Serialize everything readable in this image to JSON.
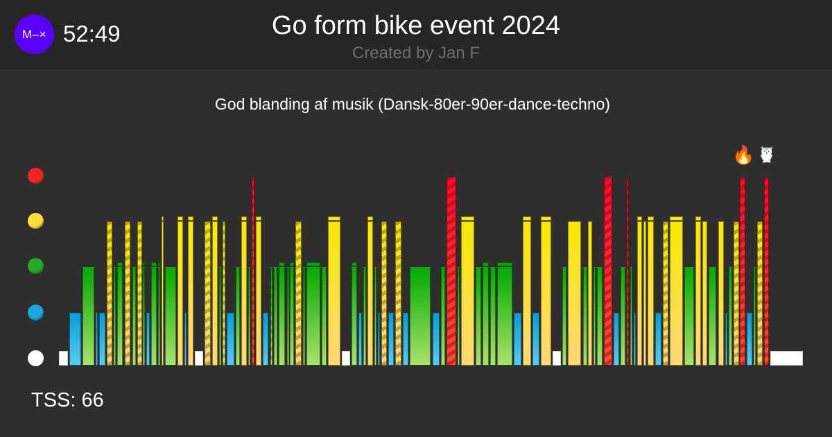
{
  "header": {
    "logo_text": "M–×",
    "timer": "52:49",
    "title": "Go form bike event 2024",
    "subtitle": "Created by Jan F"
  },
  "description": "God blanding af musik (Dansk-80er-90er-dance-techno)",
  "tss": "TSS: 66",
  "zone_colors": {
    "1": {
      "top": "#ffffff",
      "bottom": "#ffffff"
    },
    "2": {
      "top": "#069fd6",
      "bottom": "#58cbf2"
    },
    "3": {
      "top": "#00aa00",
      "bottom": "#a9e26c"
    },
    "4": {
      "top": "#f9e900",
      "bottom": "#ffd878"
    },
    "5": {
      "top": "#ff0a2a",
      "bottom": "#ff4c30"
    }
  },
  "zone_dots": [
    "#ff2020",
    "#ffe03a",
    "#22aa22",
    "#1aa8e0",
    "#ffffff"
  ],
  "chart_data": {
    "type": "bar",
    "description": "Workout interval profile by intensity zone (1-5); segment = [zone, seconds, style] where style s=striped, c=capped",
    "segments": [
      [
        1,
        45,
        ""
      ],
      [
        2,
        57,
        ""
      ],
      [
        3,
        57,
        ""
      ],
      [
        2,
        15,
        ""
      ],
      [
        2,
        33,
        ""
      ],
      [
        4,
        30,
        "s"
      ],
      [
        3,
        15,
        ""
      ],
      [
        3,
        33,
        "c"
      ],
      [
        4,
        33,
        "s"
      ],
      [
        3,
        21,
        ""
      ],
      [
        4,
        27,
        "s"
      ],
      [
        3,
        15,
        "c"
      ],
      [
        2,
        21,
        ""
      ],
      [
        3,
        30,
        "c"
      ],
      [
        3,
        15,
        "c"
      ],
      [
        4,
        15,
        "c"
      ],
      [
        3,
        54,
        ""
      ],
      [
        4,
        30,
        "c"
      ],
      [
        2,
        15,
        ""
      ],
      [
        4,
        30,
        "c"
      ],
      [
        1,
        42,
        ""
      ],
      [
        4,
        33,
        "s"
      ],
      [
        4,
        30,
        "c"
      ],
      [
        3,
        15,
        ""
      ],
      [
        4,
        18,
        "s"
      ],
      [
        2,
        39,
        ""
      ],
      [
        3,
        24,
        ""
      ],
      [
        4,
        30,
        "c"
      ],
      [
        3,
        15,
        ""
      ],
      [
        5,
        18,
        "s"
      ],
      [
        4,
        30,
        "c"
      ],
      [
        2,
        33,
        ""
      ],
      [
        3,
        15,
        "s"
      ],
      [
        3,
        21,
        ""
      ],
      [
        3,
        36,
        "c"
      ],
      [
        3,
        15,
        ""
      ],
      [
        3,
        24,
        "c"
      ],
      [
        4,
        33,
        "s"
      ],
      [
        3,
        15,
        ""
      ],
      [
        3,
        66,
        "c"
      ],
      [
        3,
        27,
        ""
      ],
      [
        4,
        60,
        "c"
      ],
      [
        1,
        42,
        ""
      ],
      [
        3,
        30,
        "c"
      ],
      [
        2,
        21,
        ""
      ],
      [
        3,
        18,
        ""
      ],
      [
        4,
        30,
        "c"
      ],
      [
        3,
        15,
        ""
      ],
      [
        2,
        15,
        ""
      ],
      [
        4,
        30,
        "s"
      ],
      [
        2,
        30,
        ""
      ],
      [
        4,
        33,
        "s"
      ],
      [
        2,
        30,
        ""
      ],
      [
        3,
        99,
        ""
      ],
      [
        2,
        39,
        ""
      ],
      [
        3,
        24,
        ""
      ],
      [
        5,
        48,
        "s"
      ],
      [
        3,
        15,
        ""
      ],
      [
        4,
        63,
        "c"
      ],
      [
        3,
        30,
        ""
      ],
      [
        3,
        33,
        "c"
      ],
      [
        3,
        30,
        ""
      ],
      [
        3,
        72,
        "c"
      ],
      [
        2,
        39,
        ""
      ],
      [
        4,
        42,
        "c"
      ],
      [
        2,
        36,
        ""
      ],
      [
        4,
        51,
        "c"
      ],
      [
        1,
        42,
        ""
      ],
      [
        3,
        24,
        ""
      ],
      [
        4,
        66,
        ""
      ],
      [
        3,
        24,
        ""
      ],
      [
        4,
        24,
        ""
      ],
      [
        3,
        15,
        ""
      ],
      [
        3,
        30,
        ""
      ],
      [
        5,
        42,
        "s"
      ],
      [
        2,
        30,
        ""
      ],
      [
        3,
        27,
        ""
      ],
      [
        5,
        15,
        "s"
      ],
      [
        3,
        15,
        ""
      ],
      [
        2,
        15,
        ""
      ],
      [
        4,
        27,
        "c"
      ],
      [
        4,
        18,
        ""
      ],
      [
        4,
        33,
        "c"
      ],
      [
        2,
        33,
        ""
      ],
      [
        4,
        30,
        "s"
      ],
      [
        4,
        63,
        "c"
      ],
      [
        3,
        48,
        ""
      ],
      [
        4,
        30,
        "c"
      ],
      [
        4,
        27,
        ""
      ],
      [
        3,
        42,
        ""
      ],
      [
        4,
        30,
        ""
      ],
      [
        2,
        15,
        ""
      ],
      [
        3,
        21,
        ""
      ],
      [
        4,
        30,
        "s"
      ],
      [
        5,
        30,
        "s"
      ],
      [
        2,
        30,
        ""
      ],
      [
        3,
        15,
        ""
      ],
      [
        4,
        30,
        "s"
      ],
      [
        5,
        27,
        "s"
      ],
      [
        1,
        147,
        ""
      ]
    ],
    "markers": [
      {
        "segment": 94,
        "icon": "fire-icon",
        "glyph": "🔥"
      },
      {
        "segment": 98,
        "icon": "owl-icon",
        "glyph": "🦉"
      }
    ]
  }
}
